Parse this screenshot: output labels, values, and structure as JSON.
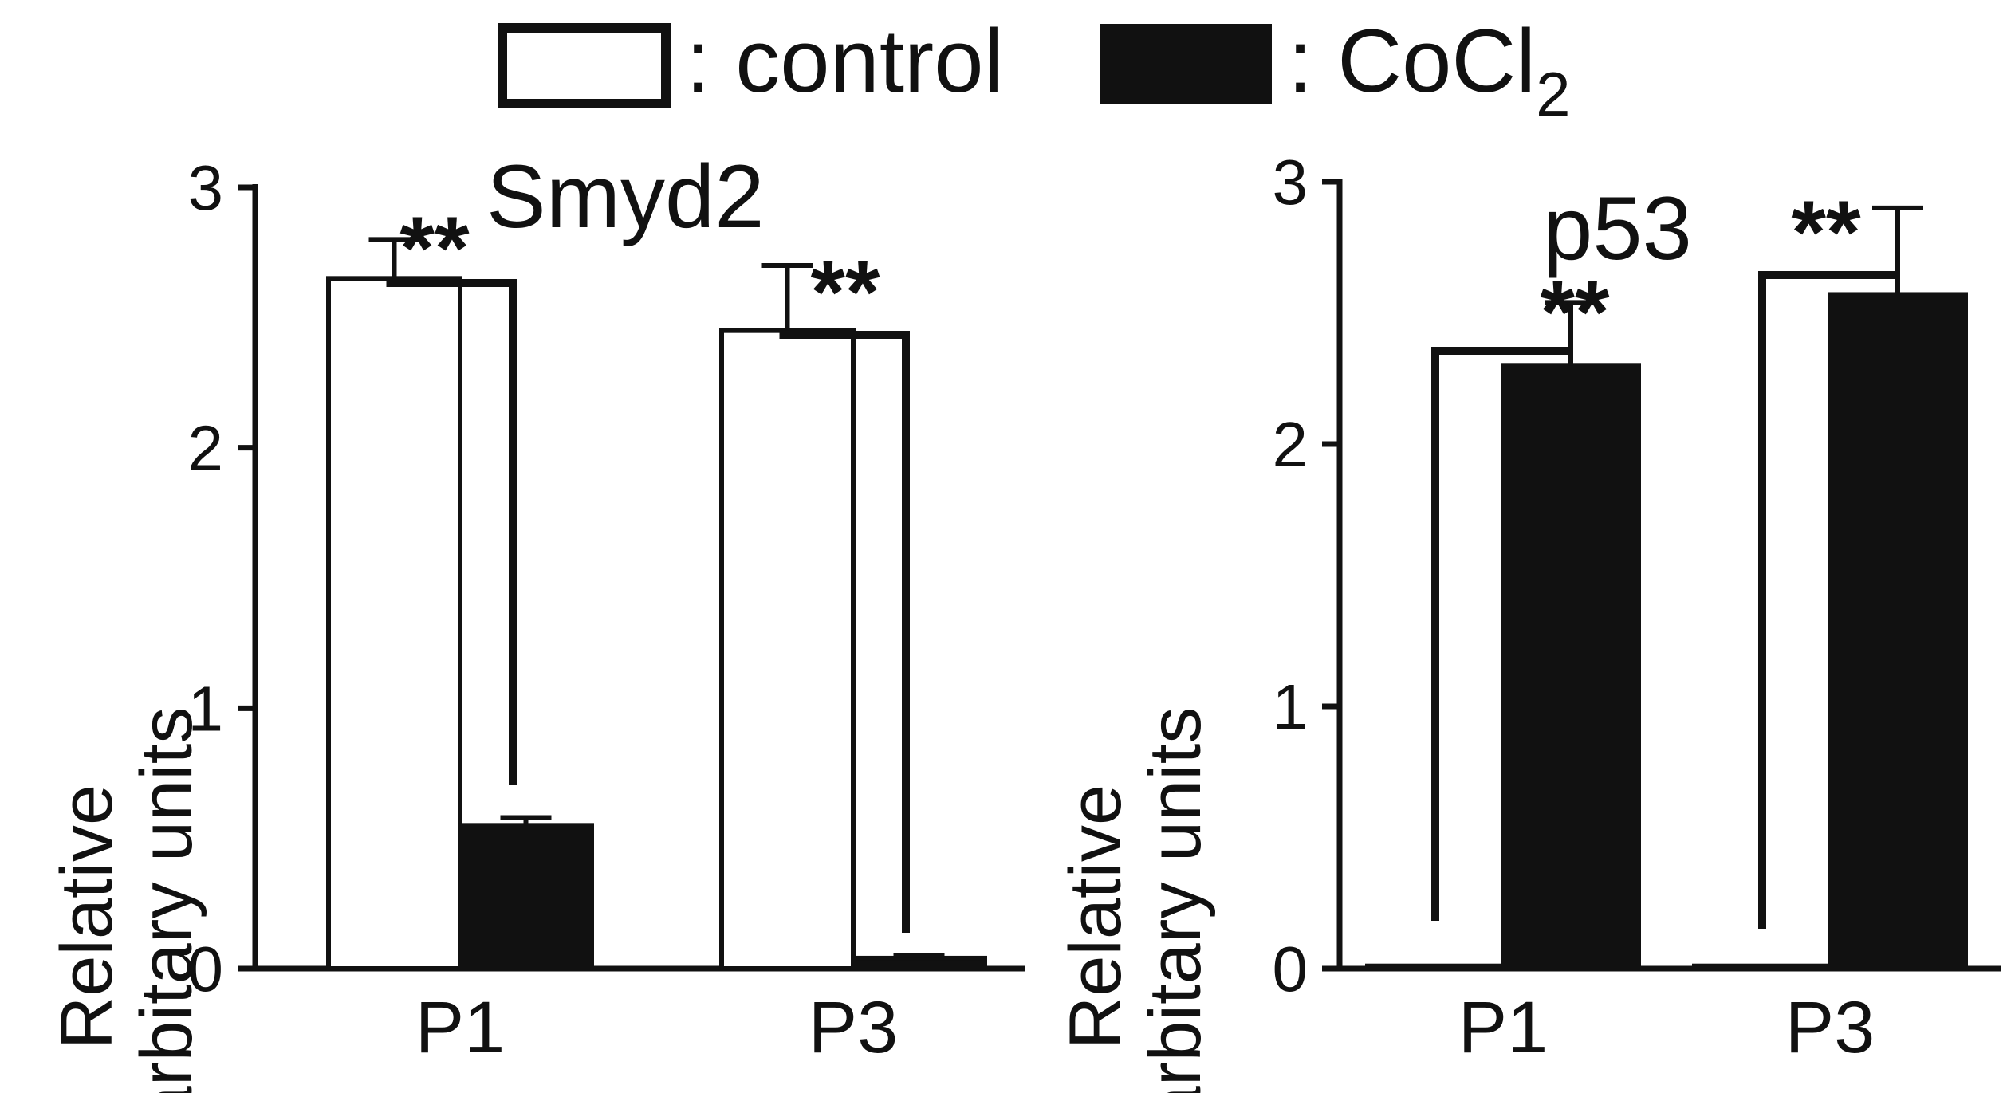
{
  "legend": {
    "items": [
      {
        "label": ": control",
        "fill": "#ffffff"
      },
      {
        "label": ": CoCl",
        "subscript": "2",
        "fill": "#111111"
      }
    ]
  },
  "chart_data": [
    {
      "type": "bar",
      "title": "Smyd2",
      "ylabel_line1": "Relative",
      "ylabel_line2": "arbitary units",
      "categories": [
        "P1",
        "P3"
      ],
      "ylim": [
        0,
        3
      ],
      "yticks": [
        "0",
        "1",
        "2",
        "3"
      ],
      "series": [
        {
          "name": "control",
          "values": [
            2.65,
            2.45
          ],
          "errors": [
            0.15,
            0.25
          ]
        },
        {
          "name": "CoCl2",
          "values": [
            0.55,
            0.04
          ],
          "errors": [
            0.03,
            0.01
          ]
        }
      ],
      "significance": [
        {
          "category": "P1",
          "label": "**"
        },
        {
          "category": "P3",
          "label": "**"
        }
      ]
    },
    {
      "type": "bar",
      "title": "p53",
      "ylabel_line1": "Relative",
      "ylabel_line2": "arbitary units",
      "categories": [
        "P1",
        "P3"
      ],
      "ylim": [
        0,
        3
      ],
      "yticks": [
        "0",
        "1",
        "2",
        "3"
      ],
      "series": [
        {
          "name": "control",
          "values": [
            0.01,
            0.01
          ],
          "errors": [
            0,
            0
          ]
        },
        {
          "name": "CoCl2",
          "values": [
            2.3,
            2.57
          ],
          "errors": [
            0.24,
            0.33
          ]
        }
      ],
      "significance": [
        {
          "category": "P1",
          "label": "**"
        },
        {
          "category": "P3",
          "label": "**"
        }
      ]
    }
  ],
  "colors": {
    "ink": "#111111",
    "control_fill": "#ffffff",
    "cocl2_fill": "#111111"
  }
}
